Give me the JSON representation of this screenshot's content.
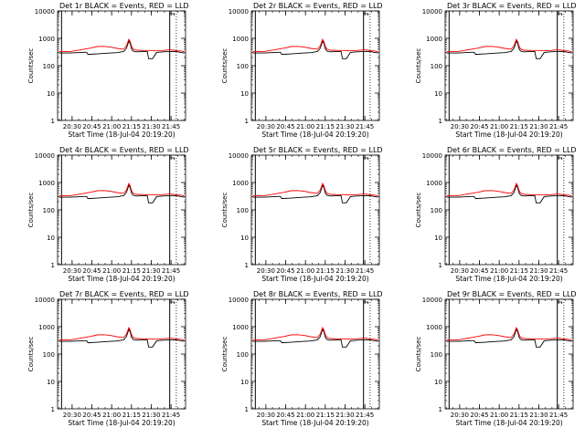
{
  "chart_data": {
    "type": "line",
    "panels": [
      {
        "title": "Det 1r  BLACK = Events, RED = LLD"
      },
      {
        "title": "Det 2r  BLACK = Events, RED = LLD"
      },
      {
        "title": "Det 3r  BLACK = Events, RED = LLD"
      },
      {
        "title": "Det 4r  BLACK = Events, RED = LLD"
      },
      {
        "title": "Det 5r  BLACK = Events, RED = LLD"
      },
      {
        "title": "Det 6r  BLACK = Events, RED = LLD"
      },
      {
        "title": "Det 7r  BLACK = Events, RED = LLD"
      },
      {
        "title": "Det 8r  BLACK = Events, RED = LLD"
      },
      {
        "title": "Det 9r  BLACK = Events, RED = LLD"
      }
    ],
    "ylabel": "Counts/sec",
    "xlabel": "Start Time (18-Jul-04 20:19:20)",
    "yscale": "log",
    "ylim": [
      1,
      10000
    ],
    "y_ticks": [
      1,
      10,
      100,
      1000,
      10000
    ],
    "y_tick_labels": [
      "1",
      "10",
      "100",
      "1000",
      "10000"
    ],
    "xlim_minutes_after_2019": [
      0,
      97
    ],
    "x_ticks_minutes_after_2019": [
      11,
      26,
      41,
      56,
      71,
      86
    ],
    "x_tick_labels": [
      "20:30",
      "20:45",
      "21:00",
      "21:15",
      "21:30",
      "21:45"
    ],
    "markers_minutes_after_2019": {
      "solid": [
        3,
        85
      ],
      "dotted": [
        90
      ]
    },
    "series_colors": {
      "events": "#000000",
      "lld": "#ff0000"
    },
    "series": [
      {
        "x": [
          1,
          10,
          20,
          22,
          23,
          30,
          40,
          45,
          50,
          52,
          53,
          54,
          55,
          56,
          57,
          58,
          60,
          65,
          68,
          69,
          70,
          72,
          75,
          76,
          80,
          85,
          88,
          90,
          93,
          96
        ],
        "values": [
          290,
          290,
          310,
          310,
          260,
          270,
          290,
          300,
          330,
          420,
          560,
          800,
          650,
          420,
          350,
          330,
          320,
          330,
          330,
          180,
          180,
          180,
          300,
          310,
          320,
          330,
          330,
          330,
          310,
          290
        ]
      },
      {
        "x": [
          1,
          10,
          20,
          25,
          30,
          35,
          40,
          45,
          50,
          52,
          53,
          54,
          55,
          56,
          57,
          58,
          60,
          65,
          70,
          75,
          80,
          85,
          88,
          90,
          93,
          96
        ],
        "values": [
          330,
          330,
          400,
          440,
          500,
          510,
          480,
          430,
          400,
          520,
          680,
          920,
          760,
          520,
          420,
          390,
          370,
          360,
          360,
          350,
          360,
          380,
          370,
          350,
          350,
          320
        ]
      }
    ]
  }
}
